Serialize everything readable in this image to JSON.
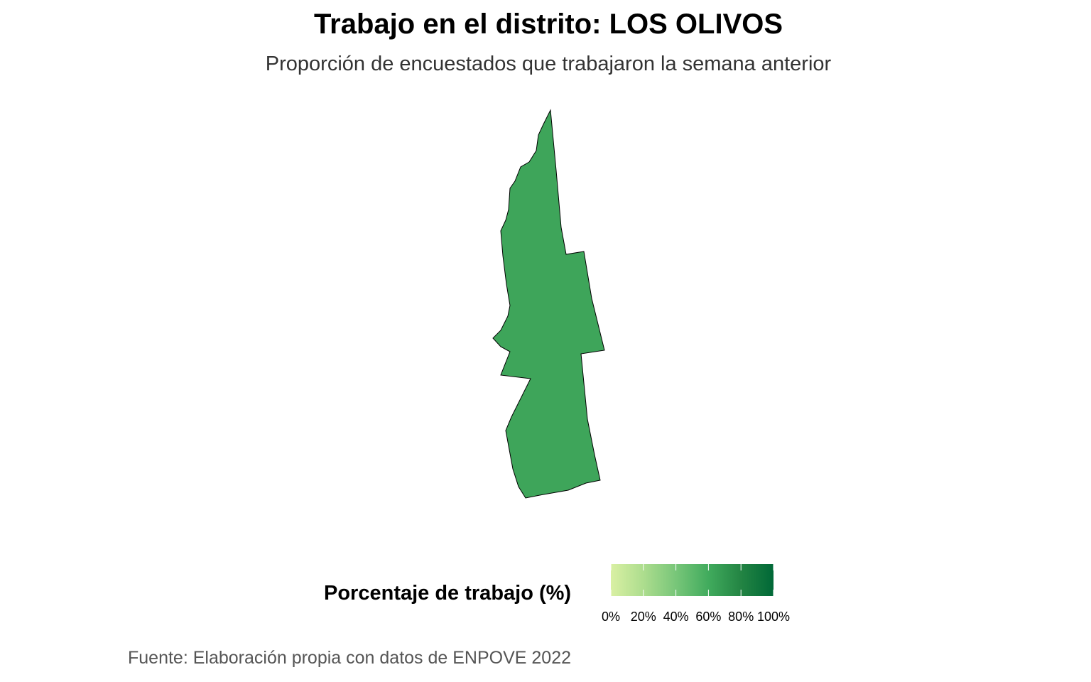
{
  "title": "Trabajo en el distrito: LOS OLIVOS",
  "subtitle": "Proporción de encuestados que trabajaron la semana anterior",
  "caption": "Fuente: Elaboración propia con datos de ENPOVE 2022",
  "legend": {
    "title": "Porcentaje de trabajo (%)",
    "ticks": [
      "0%",
      "20%",
      "40%",
      "60%",
      "80%",
      "100%"
    ],
    "scale_min": 0,
    "scale_max": 100,
    "gradient_colors": [
      "#d9f0a3",
      "#addd8e",
      "#78c679",
      "#41ab5d",
      "#238443",
      "#006837"
    ]
  },
  "map": {
    "district": "LOS OLIVOS",
    "fill_color": "#3ea55a",
    "stroke_color": "#000000"
  }
}
